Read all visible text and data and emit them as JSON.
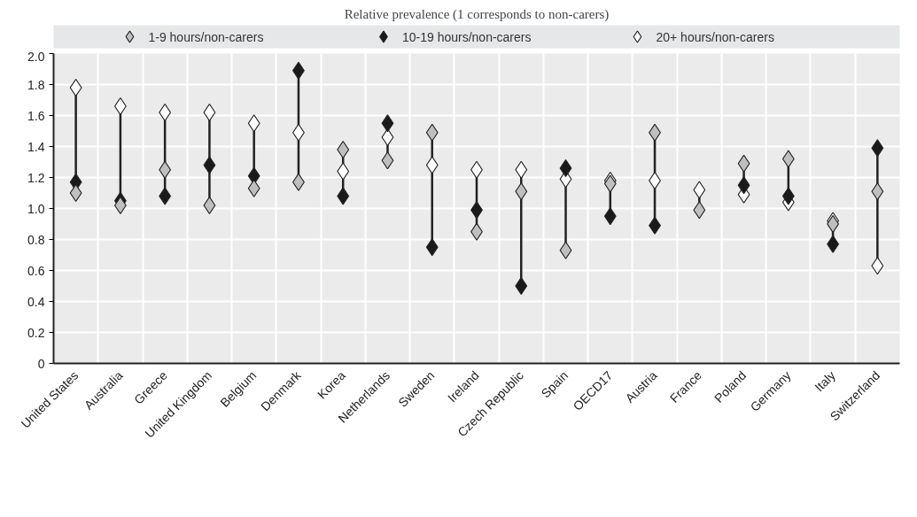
{
  "chart_data": {
    "type": "scatter",
    "subtitle": "Relative prevalence (1 corresponds to non-carers)",
    "categories": [
      "United States",
      "Australia",
      "Greece",
      "United Kingdom",
      "Belgium",
      "Denmark",
      "Korea",
      "Netherlands",
      "Sweden",
      "Ireland",
      "Czech Republic",
      "Spain",
      "OECD17",
      "Austria",
      "France",
      "Poland",
      "Germany",
      "Italy",
      "Switzerland"
    ],
    "series": [
      {
        "name": "1-9 hours/non-carers",
        "color": "#bfbfbf",
        "values": [
          1.1,
          1.02,
          1.25,
          1.02,
          1.13,
          1.17,
          1.38,
          1.31,
          1.49,
          0.85,
          1.11,
          0.73,
          1.16,
          1.49,
          0.99,
          1.29,
          1.32,
          0.9,
          1.11
        ]
      },
      {
        "name": "10-19 hours/non-carers",
        "color": "#1a1a1a",
        "values": [
          1.17,
          1.05,
          1.08,
          1.28,
          1.21,
          1.89,
          1.08,
          1.55,
          0.75,
          0.99,
          0.5,
          1.26,
          0.95,
          0.89,
          null,
          1.15,
          1.08,
          0.77,
          1.39
        ]
      },
      {
        "name": "20+ hours/non-carers",
        "color": "#ffffff",
        "values": [
          1.78,
          1.66,
          1.62,
          1.62,
          1.55,
          1.49,
          1.24,
          1.46,
          1.28,
          1.25,
          1.25,
          1.19,
          1.18,
          1.18,
          1.12,
          1.09,
          1.04,
          0.92,
          0.63
        ]
      }
    ],
    "ylim": [
      0,
      2.0
    ],
    "yticks": [
      0,
      0.2,
      0.4,
      0.6,
      0.8,
      {
        "value": 1,
        "label": "1.0"
      },
      1.2,
      1.4,
      1.6,
      1.8,
      {
        "value": 2,
        "label": "2.0"
      }
    ],
    "grid": true,
    "legend": "top",
    "marker": "diamond"
  }
}
